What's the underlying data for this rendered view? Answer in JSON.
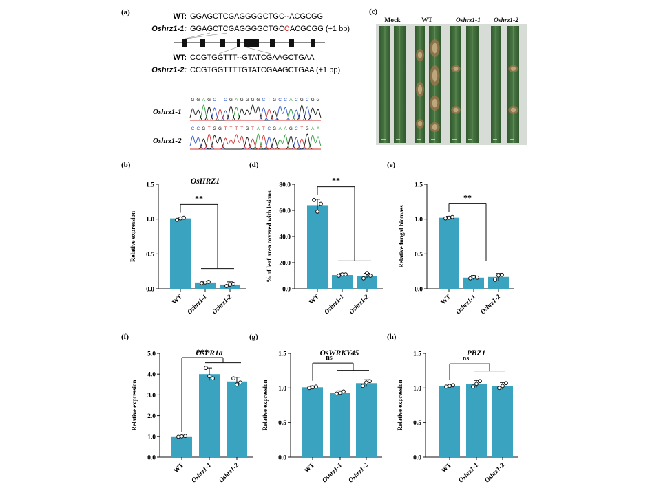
{
  "panel_a": {
    "label": "(a)",
    "seq1": {
      "wt_label": "WT:",
      "wt_seq": "GGAGCTCGAGGGGCTGC--ACGCGG",
      "mut_label": "Oshrz1-1:",
      "mut_pre": "GGAGCTCGAGGGGCTGC",
      "mut_ins": "C",
      "mut_post": "ACGCGG",
      "note": "(+1 bp)"
    },
    "seq2": {
      "wt_label": "WT:",
      "wt_seq": "CCGTGGTTT--GTATCGAAGCTGAA",
      "mut_label": "Oshrz1-2:",
      "mut_pre": "CCGTGGTTT",
      "mut_ins": "T",
      "mut_post": "GTATCGAAGCTGAA",
      "note": "(+1 bp)"
    },
    "chrom1": {
      "label": "Oshrz1-1",
      "bases": "GGAGCTCGAGGGGCTGCCACGCGG"
    },
    "chrom2": {
      "label": "Oshrz1-2",
      "bases": "CCGTGGTTTTGTATCGAAGCTGAA"
    }
  },
  "panel_c": {
    "label": "(c)",
    "groups": [
      "Mock",
      "WT",
      "Oshrz1-1",
      "Oshrz1-2"
    ]
  },
  "colors": {
    "bar": "#3aa3c0",
    "A": "#2a9d3a",
    "C": "#2f55c8",
    "G": "#111111",
    "T": "#d32f2f",
    "mutation": "#d0201c",
    "leaf": "#3f6b3a"
  },
  "chart_data": [
    {
      "panel": "(b)",
      "type": "bar",
      "title": "OsHRZ1",
      "ylabel": "Relative expression",
      "categories": [
        "WT",
        "Oshrz1-1",
        "Oshrz1-2"
      ],
      "values": [
        1.01,
        0.09,
        0.06
      ],
      "errors": [
        0.02,
        0.02,
        0.04
      ],
      "points": [
        [
          0.99,
          1.01,
          1.02
        ],
        [
          0.08,
          0.09,
          0.1
        ],
        [
          0.04,
          0.06,
          0.07
        ]
      ],
      "ylim": [
        0,
        1.5
      ],
      "yticks": [
        "0.0",
        "0.5",
        "1.0",
        "1.5"
      ],
      "significance": "**"
    },
    {
      "panel": "(d)",
      "type": "bar",
      "title": "",
      "ylabel": "% of leaf area covered with lesions",
      "categories": [
        "WT",
        "Oshrz1-1",
        "Oshrz1-2"
      ],
      "values": [
        64,
        10.5,
        10
      ],
      "errors": [
        4.5,
        1.2,
        1.8
      ],
      "points": [
        [
          68,
          59,
          65
        ],
        [
          10,
          11,
          11
        ],
        [
          8,
          12,
          10
        ]
      ],
      "ylim": [
        0,
        80
      ],
      "yticks": [
        "0.0",
        "20.0",
        "40.0",
        "60.0",
        "80.0"
      ],
      "significance": "**"
    },
    {
      "panel": "(e)",
      "type": "bar",
      "title": "",
      "ylabel": "Relative fungal biomass",
      "categories": [
        "WT",
        "Oshrz1-1",
        "Oshrz1-2"
      ],
      "values": [
        1.02,
        0.16,
        0.17
      ],
      "errors": [
        0.02,
        0.03,
        0.05
      ],
      "points": [
        [
          1.01,
          1.02,
          1.03
        ],
        [
          0.15,
          0.17,
          0.16
        ],
        [
          0.13,
          0.19,
          0.2
        ]
      ],
      "ylim": [
        0,
        1.5
      ],
      "yticks": [
        "0.0",
        "0.5",
        "1.0",
        "1.5"
      ],
      "significance": "**"
    },
    {
      "panel": "(f)",
      "type": "bar",
      "title": "OsPR1a",
      "ylabel": "Relative expression",
      "categories": [
        "WT",
        "Oshrz1-1",
        "Oshrz1-2"
      ],
      "values": [
        1.0,
        4.0,
        3.65
      ],
      "errors": [
        0.02,
        0.3,
        0.2
      ],
      "points": [
        [
          0.98,
          1.0,
          1.02
        ],
        [
          4.3,
          3.9,
          3.8
        ],
        [
          3.8,
          3.5,
          3.6
        ]
      ],
      "ylim": [
        0,
        5
      ],
      "yticks": [
        "0.0",
        "1.0",
        "2.0",
        "3.0",
        "4.0",
        "5.0"
      ],
      "significance": "***"
    },
    {
      "panel": "(g)",
      "type": "bar",
      "title": "OsWRKY45",
      "ylabel": "Relative expression",
      "categories": [
        "WT",
        "Oshrz1-1",
        "Oshrz1-2"
      ],
      "values": [
        1.01,
        0.93,
        1.07
      ],
      "errors": [
        0.02,
        0.03,
        0.05
      ],
      "points": [
        [
          1.0,
          1.01,
          1.02
        ],
        [
          0.92,
          0.93,
          0.95
        ],
        [
          1.03,
          1.08,
          1.1
        ]
      ],
      "ylim": [
        0,
        1.5
      ],
      "yticks": [
        "0.0",
        "0.5",
        "1.0",
        "1.5"
      ],
      "significance": "ns"
    },
    {
      "panel": "(h)",
      "type": "bar",
      "title": "PBZ1",
      "ylabel": "Relative expression",
      "categories": [
        "WT",
        "Oshrz1-1",
        "Oshrz1-2"
      ],
      "values": [
        1.03,
        1.06,
        1.03
      ],
      "errors": [
        0.01,
        0.05,
        0.05
      ],
      "points": [
        [
          1.02,
          1.03,
          1.04
        ],
        [
          1.02,
          1.06,
          1.1
        ],
        [
          1.0,
          1.03,
          1.07
        ]
      ],
      "ylim": [
        0,
        1.5
      ],
      "yticks": [
        "0.0",
        "0.5",
        "1.0",
        "1.5"
      ],
      "significance": "ns"
    }
  ]
}
